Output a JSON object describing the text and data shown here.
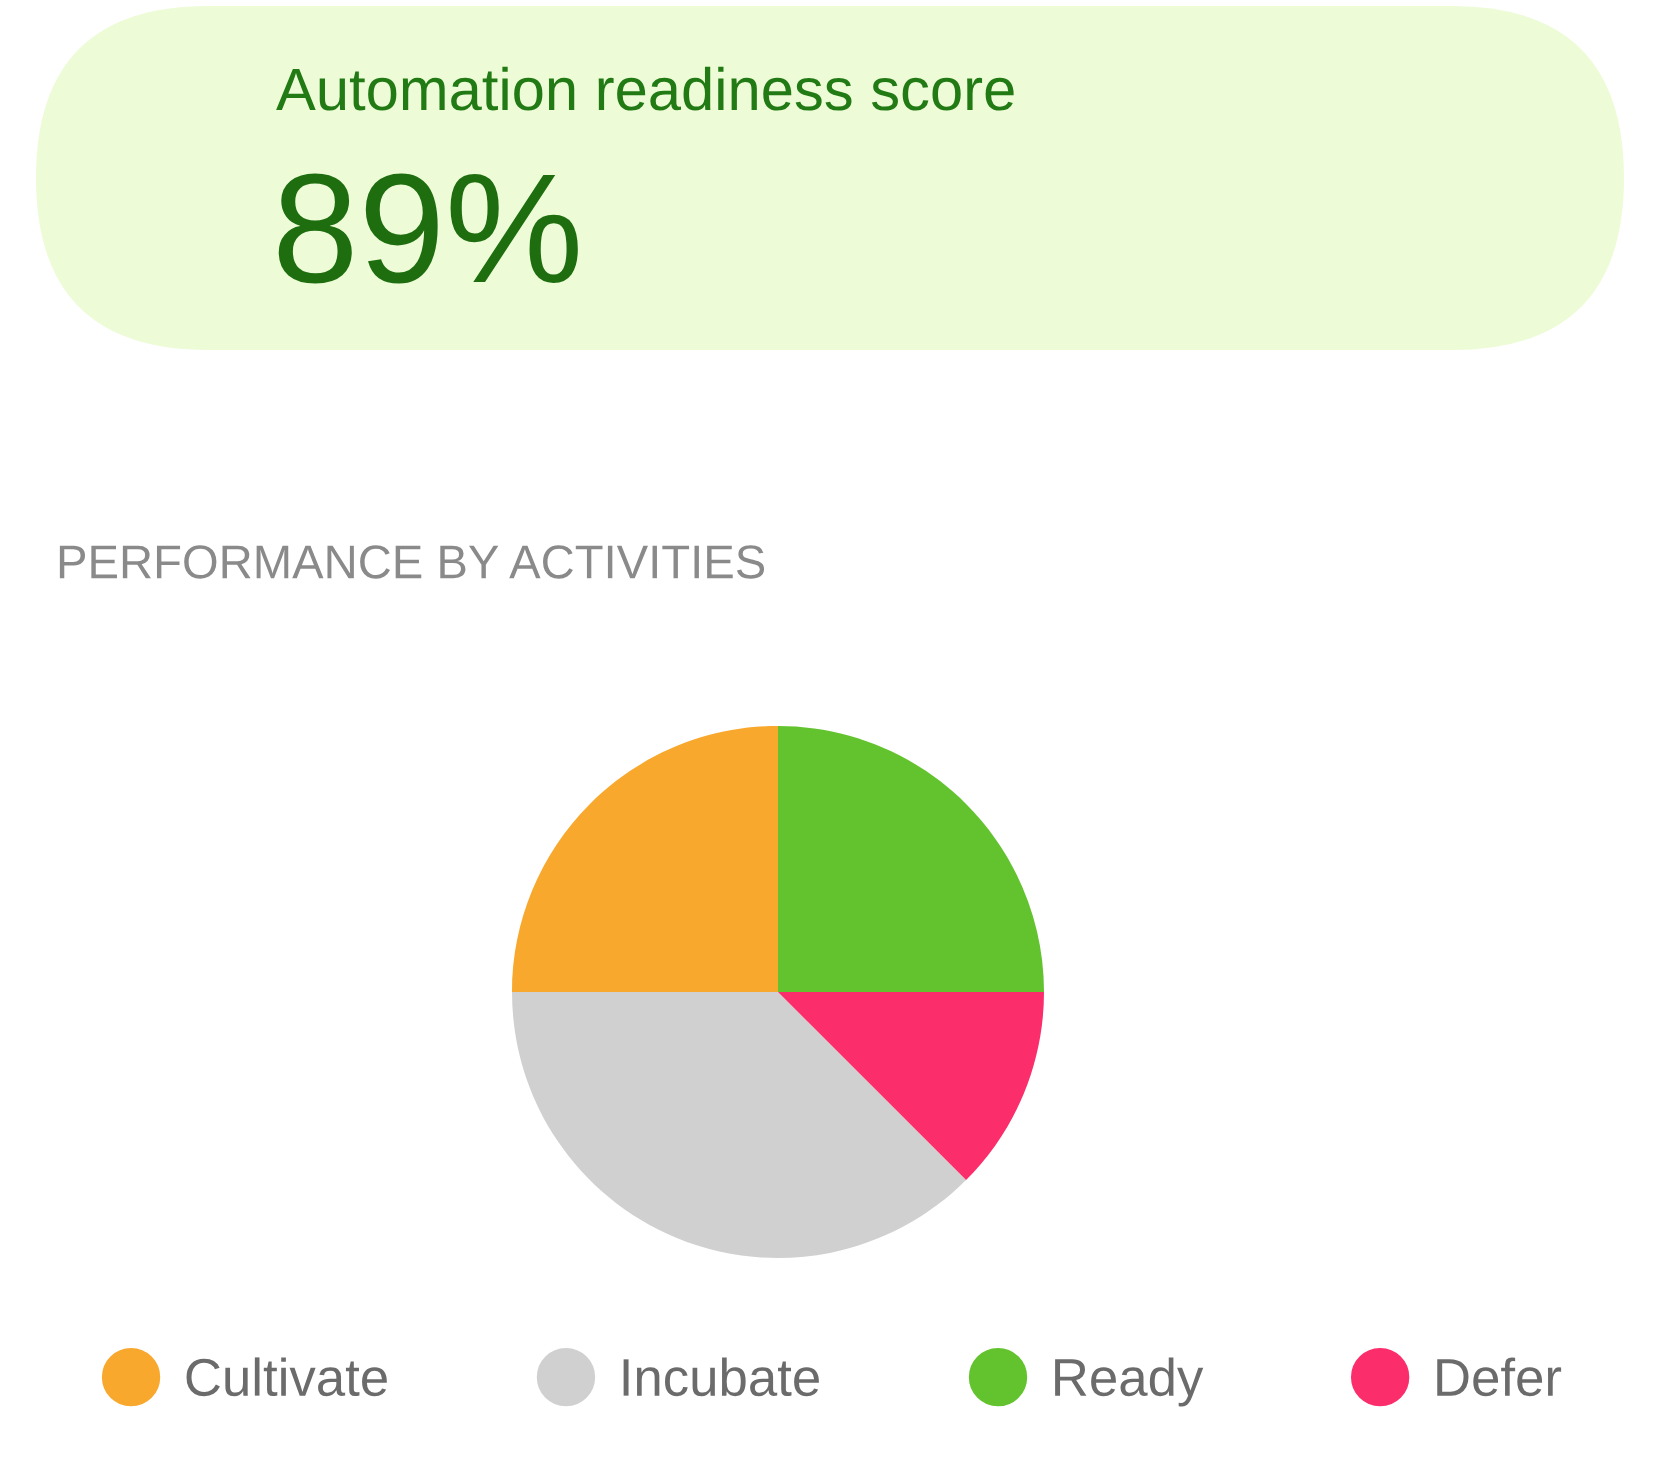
{
  "chart_data": [
    {
      "type": "other",
      "title": "Automation readiness score",
      "annotations": [
        "89%"
      ]
    },
    {
      "type": "pie",
      "title": "PERFORMANCE BY ACTIVITIES",
      "categories": [
        "Cultivate",
        "Incubate",
        "Ready",
        "Defer"
      ],
      "values": [
        25,
        37.5,
        25,
        12.5
      ],
      "colors": [
        "#f8a82d",
        "#d0d0d0",
        "#63c32e",
        "#fb2d6b"
      ],
      "legend": "bottom"
    }
  ]
}
